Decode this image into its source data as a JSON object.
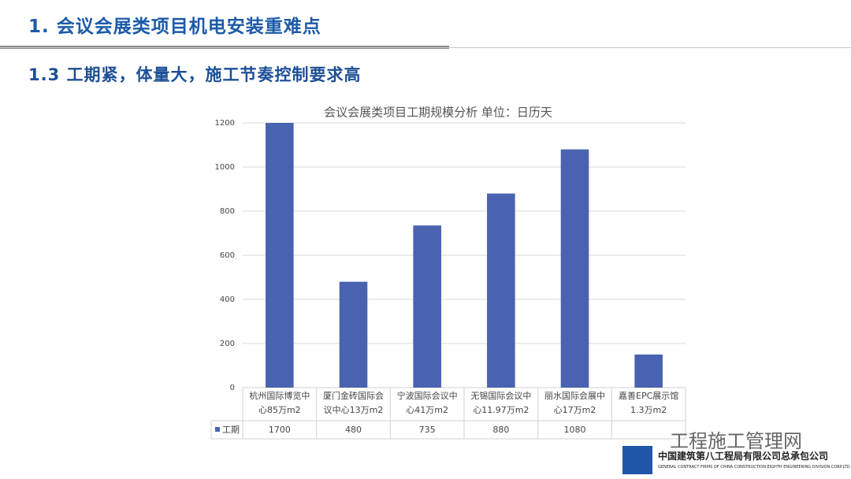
{
  "header": {
    "title": "1. 会议会展类项目机电安装重难点",
    "subtitle": "1.3 工期紧，体量大，施工节奏控制要求高"
  },
  "footer": {
    "watermark": "工程施工管理网",
    "company": "中国建筑第八工程局有限公司总承包公司",
    "company_en": "GENERAL CONTRACT FIRMS OF CHINA CONSTRUCTION EIGHTH ENGINEERING DIVISION.CORP.LTD"
  },
  "chart_data": {
    "type": "bar",
    "title": "会议会展类项目工期规模分析  单位：日历天",
    "categories": [
      "杭州国际博览中心85万m2",
      "厦门金砖国际会议中心13万m2",
      "宁波国际会议中心41万m2",
      "无锡国际会议中心11.97万m2",
      "丽水国际会展中心17万m2",
      "嘉善EPC展示馆1.3万m2"
    ],
    "series": [
      {
        "name": "工期",
        "color": "#4a63b0",
        "values": [
          1700,
          480,
          735,
          880,
          1080,
          150
        ],
        "value_labels": [
          "1700",
          "480",
          "735",
          "880",
          "1080",
          null
        ]
      }
    ],
    "ylim": [
      0,
      1200
    ],
    "yticks": [
      0,
      200,
      400,
      600,
      800,
      1000,
      1200
    ],
    "grid": true
  }
}
